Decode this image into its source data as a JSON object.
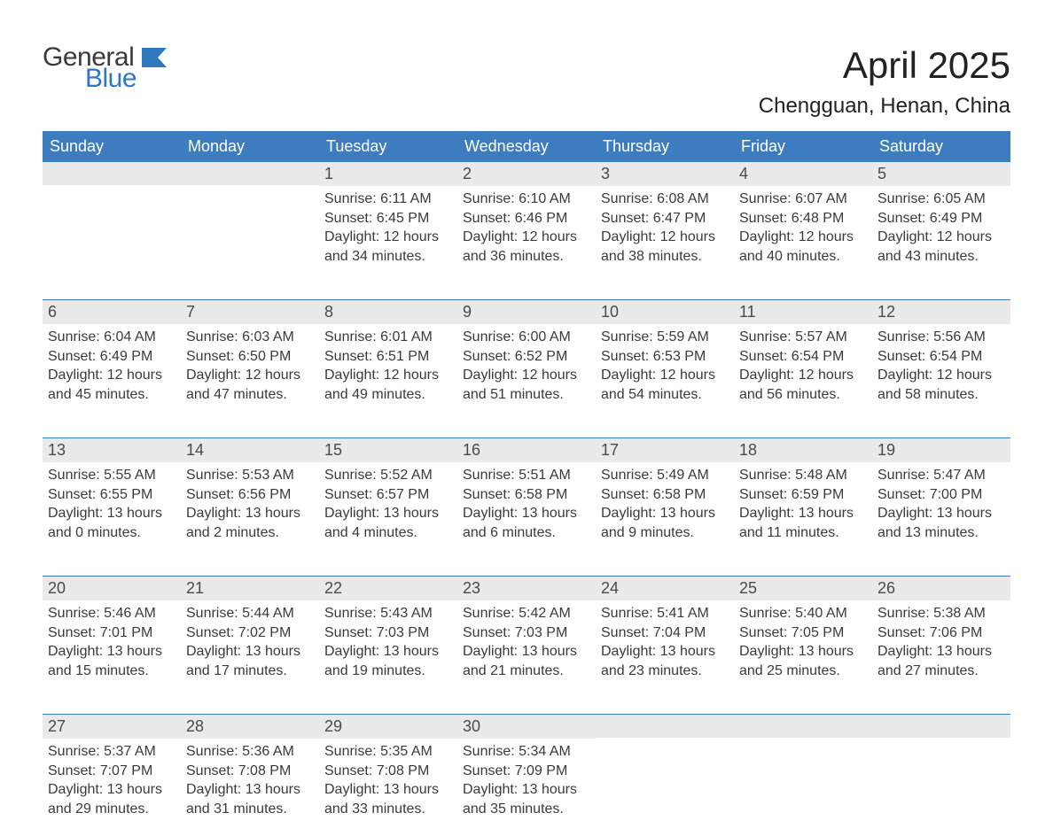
{
  "logo": {
    "word1": "General",
    "word2": "Blue",
    "flag_color": "#2f78bd"
  },
  "title": "April 2025",
  "location": "Chengguan, Henan, China",
  "colors": {
    "header_bg": "#3d7cbf",
    "header_text": "#ffffff",
    "daynum_bg": "#e9e9e9",
    "border": "#3d7cbf",
    "body_text": "#3a3a3a",
    "logo_blue": "#2f78bd",
    "background": "#ffffff"
  },
  "typography": {
    "title_fontsize": 42,
    "location_fontsize": 24,
    "header_fontsize": 18,
    "daynum_fontsize": 18,
    "body_fontsize": 16,
    "logo_fontsize": 30
  },
  "day_labels": [
    "Sunday",
    "Monday",
    "Tuesday",
    "Wednesday",
    "Thursday",
    "Friday",
    "Saturday"
  ],
  "weeks": [
    [
      {
        "n": "",
        "sunrise": "",
        "sunset": "",
        "daylight": ""
      },
      {
        "n": "",
        "sunrise": "",
        "sunset": "",
        "daylight": ""
      },
      {
        "n": "1",
        "sunrise": "Sunrise: 6:11 AM",
        "sunset": "Sunset: 6:45 PM",
        "daylight": "Daylight: 12 hours and 34 minutes."
      },
      {
        "n": "2",
        "sunrise": "Sunrise: 6:10 AM",
        "sunset": "Sunset: 6:46 PM",
        "daylight": "Daylight: 12 hours and 36 minutes."
      },
      {
        "n": "3",
        "sunrise": "Sunrise: 6:08 AM",
        "sunset": "Sunset: 6:47 PM",
        "daylight": "Daylight: 12 hours and 38 minutes."
      },
      {
        "n": "4",
        "sunrise": "Sunrise: 6:07 AM",
        "sunset": "Sunset: 6:48 PM",
        "daylight": "Daylight: 12 hours and 40 minutes."
      },
      {
        "n": "5",
        "sunrise": "Sunrise: 6:05 AM",
        "sunset": "Sunset: 6:49 PM",
        "daylight": "Daylight: 12 hours and 43 minutes."
      }
    ],
    [
      {
        "n": "6",
        "sunrise": "Sunrise: 6:04 AM",
        "sunset": "Sunset: 6:49 PM",
        "daylight": "Daylight: 12 hours and 45 minutes."
      },
      {
        "n": "7",
        "sunrise": "Sunrise: 6:03 AM",
        "sunset": "Sunset: 6:50 PM",
        "daylight": "Daylight: 12 hours and 47 minutes."
      },
      {
        "n": "8",
        "sunrise": "Sunrise: 6:01 AM",
        "sunset": "Sunset: 6:51 PM",
        "daylight": "Daylight: 12 hours and 49 minutes."
      },
      {
        "n": "9",
        "sunrise": "Sunrise: 6:00 AM",
        "sunset": "Sunset: 6:52 PM",
        "daylight": "Daylight: 12 hours and 51 minutes."
      },
      {
        "n": "10",
        "sunrise": "Sunrise: 5:59 AM",
        "sunset": "Sunset: 6:53 PM",
        "daylight": "Daylight: 12 hours and 54 minutes."
      },
      {
        "n": "11",
        "sunrise": "Sunrise: 5:57 AM",
        "sunset": "Sunset: 6:54 PM",
        "daylight": "Daylight: 12 hours and 56 minutes."
      },
      {
        "n": "12",
        "sunrise": "Sunrise: 5:56 AM",
        "sunset": "Sunset: 6:54 PM",
        "daylight": "Daylight: 12 hours and 58 minutes."
      }
    ],
    [
      {
        "n": "13",
        "sunrise": "Sunrise: 5:55 AM",
        "sunset": "Sunset: 6:55 PM",
        "daylight": "Daylight: 13 hours and 0 minutes."
      },
      {
        "n": "14",
        "sunrise": "Sunrise: 5:53 AM",
        "sunset": "Sunset: 6:56 PM",
        "daylight": "Daylight: 13 hours and 2 minutes."
      },
      {
        "n": "15",
        "sunrise": "Sunrise: 5:52 AM",
        "sunset": "Sunset: 6:57 PM",
        "daylight": "Daylight: 13 hours and 4 minutes."
      },
      {
        "n": "16",
        "sunrise": "Sunrise: 5:51 AM",
        "sunset": "Sunset: 6:58 PM",
        "daylight": "Daylight: 13 hours and 6 minutes."
      },
      {
        "n": "17",
        "sunrise": "Sunrise: 5:49 AM",
        "sunset": "Sunset: 6:58 PM",
        "daylight": "Daylight: 13 hours and 9 minutes."
      },
      {
        "n": "18",
        "sunrise": "Sunrise: 5:48 AM",
        "sunset": "Sunset: 6:59 PM",
        "daylight": "Daylight: 13 hours and 11 minutes."
      },
      {
        "n": "19",
        "sunrise": "Sunrise: 5:47 AM",
        "sunset": "Sunset: 7:00 PM",
        "daylight": "Daylight: 13 hours and 13 minutes."
      }
    ],
    [
      {
        "n": "20",
        "sunrise": "Sunrise: 5:46 AM",
        "sunset": "Sunset: 7:01 PM",
        "daylight": "Daylight: 13 hours and 15 minutes."
      },
      {
        "n": "21",
        "sunrise": "Sunrise: 5:44 AM",
        "sunset": "Sunset: 7:02 PM",
        "daylight": "Daylight: 13 hours and 17 minutes."
      },
      {
        "n": "22",
        "sunrise": "Sunrise: 5:43 AM",
        "sunset": "Sunset: 7:03 PM",
        "daylight": "Daylight: 13 hours and 19 minutes."
      },
      {
        "n": "23",
        "sunrise": "Sunrise: 5:42 AM",
        "sunset": "Sunset: 7:03 PM",
        "daylight": "Daylight: 13 hours and 21 minutes."
      },
      {
        "n": "24",
        "sunrise": "Sunrise: 5:41 AM",
        "sunset": "Sunset: 7:04 PM",
        "daylight": "Daylight: 13 hours and 23 minutes."
      },
      {
        "n": "25",
        "sunrise": "Sunrise: 5:40 AM",
        "sunset": "Sunset: 7:05 PM",
        "daylight": "Daylight: 13 hours and 25 minutes."
      },
      {
        "n": "26",
        "sunrise": "Sunrise: 5:38 AM",
        "sunset": "Sunset: 7:06 PM",
        "daylight": "Daylight: 13 hours and 27 minutes."
      }
    ],
    [
      {
        "n": "27",
        "sunrise": "Sunrise: 5:37 AM",
        "sunset": "Sunset: 7:07 PM",
        "daylight": "Daylight: 13 hours and 29 minutes."
      },
      {
        "n": "28",
        "sunrise": "Sunrise: 5:36 AM",
        "sunset": "Sunset: 7:08 PM",
        "daylight": "Daylight: 13 hours and 31 minutes."
      },
      {
        "n": "29",
        "sunrise": "Sunrise: 5:35 AM",
        "sunset": "Sunset: 7:08 PM",
        "daylight": "Daylight: 13 hours and 33 minutes."
      },
      {
        "n": "30",
        "sunrise": "Sunrise: 5:34 AM",
        "sunset": "Sunset: 7:09 PM",
        "daylight": "Daylight: 13 hours and 35 minutes."
      },
      {
        "n": "",
        "sunrise": "",
        "sunset": "",
        "daylight": ""
      },
      {
        "n": "",
        "sunrise": "",
        "sunset": "",
        "daylight": ""
      },
      {
        "n": "",
        "sunrise": "",
        "sunset": "",
        "daylight": ""
      }
    ]
  ]
}
